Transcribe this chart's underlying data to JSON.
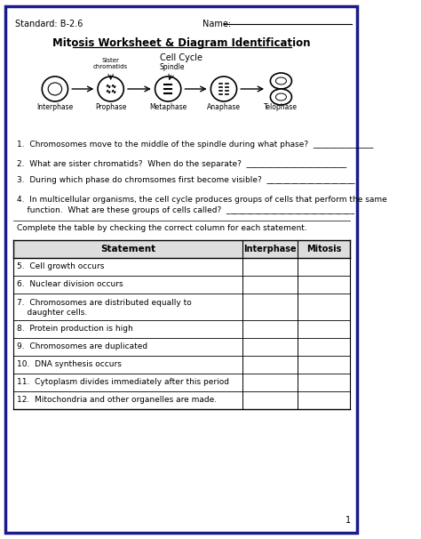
{
  "title": "Mitosis Worksheet & Diagram Identification",
  "standard": "Standard: B-2.6",
  "name_label": "Name:",
  "cell_cycle_label": "Cell Cycle",
  "phases": [
    "Interphase",
    "Prophase",
    "Metaphase",
    "Anaphase",
    "Telophase"
  ],
  "spindle_label": "Spindle",
  "sister_chromatids_label": "Sister\nchromatids",
  "q1": "1.  Chromosomes move to the middle of the spindle during what phase?  _______________",
  "q2": "2.  What are sister chromatids?  When do the separate?  _________________________",
  "q3": "3.  During which phase do chromsomes first become visible?  ______________________",
  "q4a": "4.  In multicellular organisms, the cell cycle produces groups of cells that perform the same",
  "q4b": "    function.  What are these groups of cells called?  ________________________________",
  "table_instruction": "Complete the table by checking the correct column for each statement.",
  "table_headers": [
    "Statement",
    "Interphase",
    "Mitosis"
  ],
  "table_rows": [
    [
      "5.  Cell growth occurs"
    ],
    [
      "6.  Nuclear division occurs"
    ],
    [
      "7.  Chromosomes are distributed equally to",
      "    daughter cells."
    ],
    [
      "8.  Protein production is high"
    ],
    [
      "9.  Chromosomes are duplicated"
    ],
    [
      "10.  DNA synthesis occurs"
    ],
    [
      "11.  Cytoplasm divides immediately after this period"
    ],
    [
      "12.  Mitochondria and other organelles are made."
    ]
  ],
  "border_color": "#1a1a8c",
  "background": "#ffffff",
  "page_number": "1",
  "fig_width": 4.74,
  "fig_height": 6.06,
  "dpi": 100
}
